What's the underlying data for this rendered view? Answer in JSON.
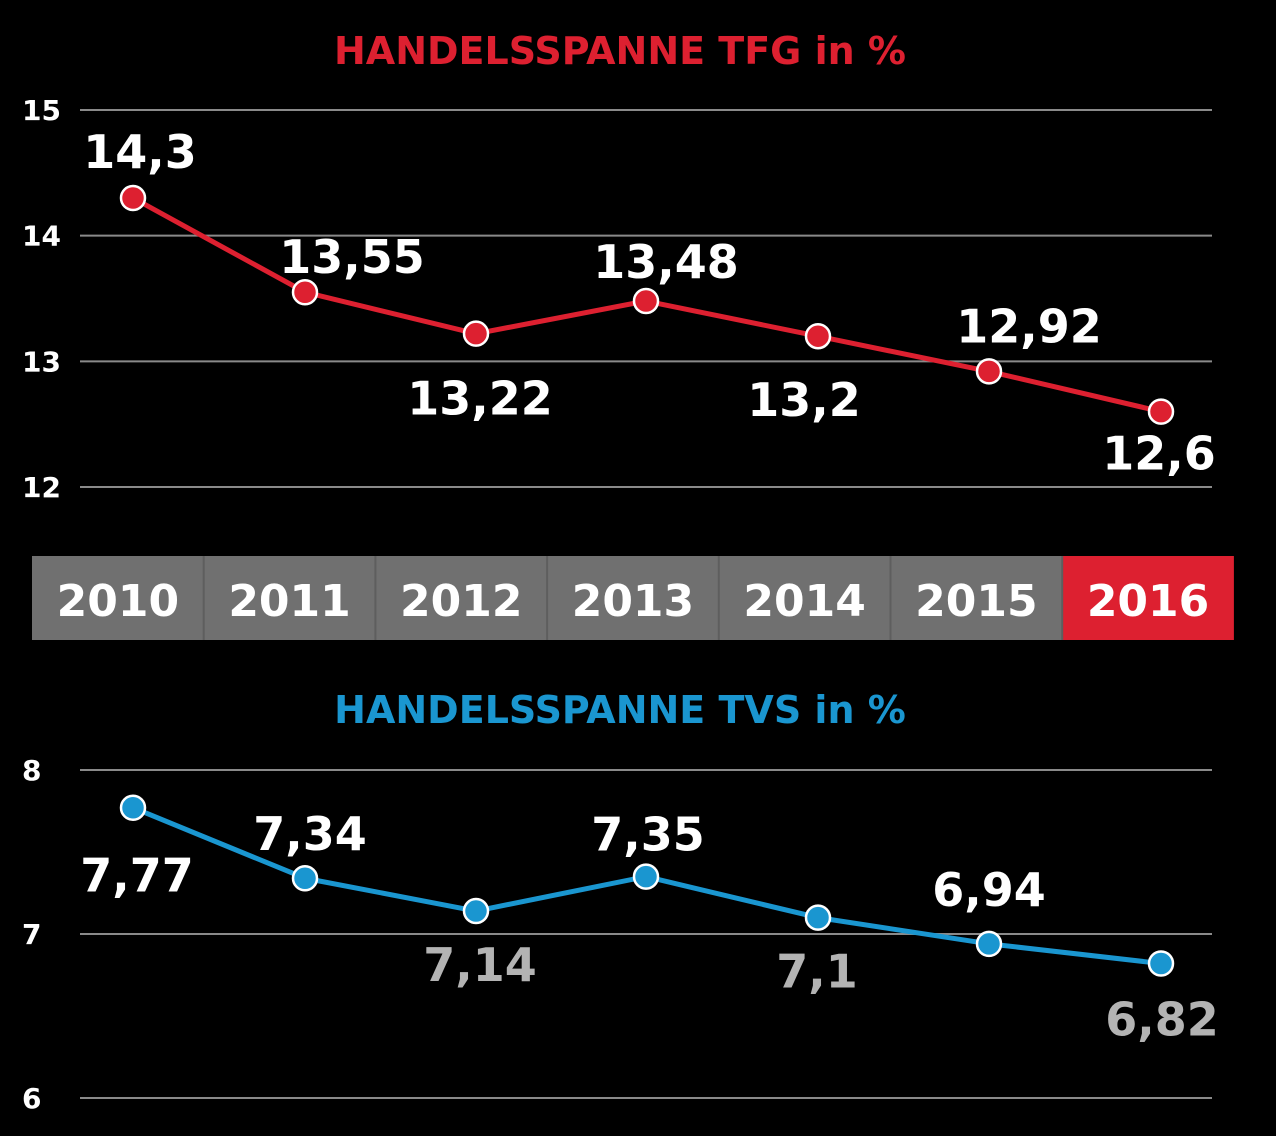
{
  "colors": {
    "background": "#000000",
    "tfg": "#dd2030",
    "tvs": "#1a96d0",
    "year_band": "#707070",
    "year_band_highlight": "#dd2030",
    "label_light": "#ffffff",
    "label_dim": "#b3b3b3",
    "grid": "#8a8a8a"
  },
  "years": [
    "2010",
    "2011",
    "2012",
    "2013",
    "2014",
    "2015",
    "2016"
  ],
  "highlight_year": "2016",
  "chart_data": [
    {
      "type": "line",
      "title": "HANDELSSPANNE TFG in %",
      "categories": [
        "2010",
        "2011",
        "2012",
        "2013",
        "2014",
        "2015",
        "2016"
      ],
      "values": [
        14.3,
        13.55,
        13.22,
        13.48,
        13.2,
        12.92,
        12.6
      ],
      "data_labels": [
        "14,3",
        "13,55",
        "13,22",
        "13,48",
        "13,2",
        "12,92",
        "12,6"
      ],
      "yticks": [
        "15",
        "14",
        "13",
        "12"
      ],
      "ylim": [
        12,
        15
      ],
      "grid": true,
      "xlabel": "",
      "ylabel": ""
    },
    {
      "type": "line",
      "title": "HANDELSSPANNE TVS in %",
      "categories": [
        "2010",
        "2011",
        "2012",
        "2013",
        "2014",
        "2015",
        "2016"
      ],
      "values": [
        7.77,
        7.34,
        7.14,
        7.35,
        7.1,
        6.94,
        6.82
      ],
      "data_labels": [
        "7,77",
        "7,34",
        "7,14",
        "7,35",
        "7,1",
        "6,94",
        "6,82"
      ],
      "yticks": [
        "8",
        "7",
        "6"
      ],
      "ylim": [
        6,
        8
      ],
      "grid": true,
      "xlabel": "",
      "ylabel": ""
    }
  ]
}
